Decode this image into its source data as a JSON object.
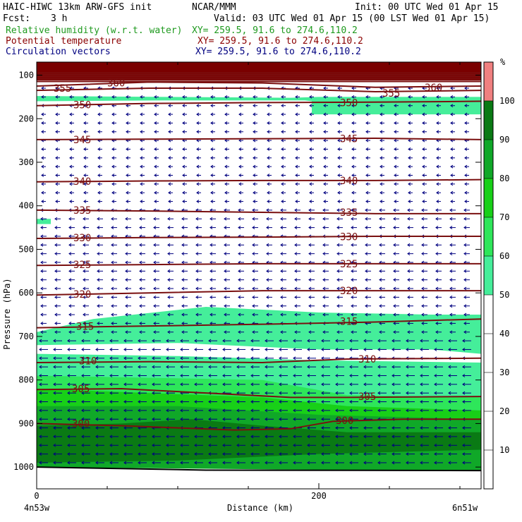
{
  "header": {
    "title": "HAIC-HIWC 13km ARW-GFS init",
    "org": "NCAR/MMM",
    "init": "Init: 00 UTC Wed 01 Apr 15",
    "fcst_label": "Fcst:",
    "fcst_value": "3 h",
    "valid": "Valid: 03 UTC Wed 01 Apr 15 (00 LST Wed 01 Apr 15)",
    "fields": [
      {
        "name": "Relative humidity (w.r.t. water)",
        "xy": "XY= 259.5, 91.6 to 274.6,110.2",
        "color": "#1f9a1f"
      },
      {
        "name": "Potential temperature",
        "xy": "XY= 259.5, 91.6 to 274.6,110.2",
        "color": "#8b0000"
      },
      {
        "name": "Circulation vectors",
        "xy": "XY= 259.5, 91.6 to 274.6,110.2",
        "color": "#000080"
      }
    ]
  },
  "chart_data": {
    "type": "cross-section",
    "xlabel": "Distance (km)",
    "ylabel": "Pressure (hPa)",
    "xlim": [
      0,
      315
    ],
    "ylim": [
      1050,
      70
    ],
    "x_ticks": [
      0,
      200
    ],
    "x_minor_ticks": [
      50,
      100,
      150,
      250,
      300
    ],
    "y_ticks": [
      100,
      200,
      300,
      400,
      500,
      600,
      700,
      800,
      900,
      1000
    ],
    "x_end_labels": {
      "left": "4n53w",
      "right": "6n51w"
    },
    "colors": {
      "rh_50_60": "#45ee9a",
      "rh_60_70": "#2ee65a",
      "rh_70_80": "#18d018",
      "rh_80_90": "#10a828",
      "rh_90_100": "#0a7a14",
      "rh_100_plus": "#f08080",
      "stratosphere_fill": "#7a0000",
      "theta_line": "#7a1010",
      "vector": "#000080",
      "terrain": "#000000"
    },
    "colorbar": {
      "unit": "%",
      "levels": [
        10,
        20,
        30,
        40,
        50,
        60,
        70,
        80,
        90,
        100
      ],
      "fill_colors": [
        "#ffffff",
        "#ffffff",
        "#ffffff",
        "#ffffff",
        "#ffffff",
        "#45ee9a",
        "#2ee65a",
        "#18d018",
        "#10a828",
        "#0a7a14",
        "#f08080"
      ]
    },
    "theta_contours": [
      {
        "value": 300,
        "label": "300",
        "p": [
          [
            0,
            900
          ],
          [
            60,
            905
          ],
          [
            140,
            915
          ],
          [
            180,
            912
          ],
          [
            210,
            895
          ],
          [
            260,
            890
          ],
          [
            315,
            890
          ]
        ],
        "label_at": [
          [
            25,
            900
          ],
          [
            212,
            893
          ]
        ]
      },
      {
        "value": 305,
        "label": "305",
        "p": [
          [
            0,
            822
          ],
          [
            60,
            820
          ],
          [
            120,
            830
          ],
          [
            180,
            840
          ],
          [
            220,
            840
          ],
          [
            315,
            838
          ]
        ],
        "label_at": [
          [
            25,
            820
          ],
          [
            228,
            838
          ]
        ]
      },
      {
        "value": 310,
        "label": "310",
        "p": [
          [
            0,
            760
          ],
          [
            80,
            758
          ],
          [
            160,
            760
          ],
          [
            220,
            752
          ],
          [
            315,
            750
          ]
        ],
        "label_at": [
          [
            30,
            756
          ],
          [
            228,
            752
          ]
        ]
      },
      {
        "value": 315,
        "label": "315",
        "p": [
          [
            0,
            680
          ],
          [
            80,
            676
          ],
          [
            160,
            672
          ],
          [
            240,
            667
          ],
          [
            315,
            660
          ]
        ],
        "label_at": [
          [
            28,
            677
          ],
          [
            215,
            665
          ]
        ]
      },
      {
        "value": 320,
        "label": "320",
        "p": [
          [
            0,
            605
          ],
          [
            80,
            600
          ],
          [
            160,
            595
          ],
          [
            240,
            595
          ],
          [
            315,
            595
          ]
        ],
        "label_at": [
          [
            26,
            603
          ],
          [
            215,
            595
          ]
        ]
      },
      {
        "value": 325,
        "label": "325",
        "p": [
          [
            0,
            537
          ],
          [
            80,
            535
          ],
          [
            160,
            533
          ],
          [
            240,
            533
          ],
          [
            315,
            533
          ]
        ],
        "label_at": [
          [
            26,
            535
          ],
          [
            215,
            533
          ]
        ]
      },
      {
        "value": 330,
        "label": "330",
        "p": [
          [
            0,
            475
          ],
          [
            80,
            473
          ],
          [
            160,
            472
          ],
          [
            240,
            470
          ],
          [
            315,
            470
          ]
        ],
        "label_at": [
          [
            26,
            473
          ],
          [
            215,
            471
          ]
        ]
      },
      {
        "value": 335,
        "label": "335",
        "p": [
          [
            0,
            410
          ],
          [
            80,
            412
          ],
          [
            160,
            415
          ],
          [
            240,
            418
          ],
          [
            315,
            418
          ]
        ],
        "label_at": [
          [
            26,
            410
          ],
          [
            215,
            415
          ]
        ]
      },
      {
        "value": 340,
        "label": "340",
        "p": [
          [
            0,
            345
          ],
          [
            80,
            343
          ],
          [
            160,
            342
          ],
          [
            240,
            342
          ],
          [
            315,
            340
          ]
        ],
        "label_at": [
          [
            26,
            344
          ],
          [
            215,
            342
          ]
        ]
      },
      {
        "value": 345,
        "label": "345",
        "p": [
          [
            0,
            248
          ],
          [
            80,
            247
          ],
          [
            160,
            246
          ],
          [
            240,
            245
          ],
          [
            315,
            248
          ]
        ],
        "label_at": [
          [
            26,
            248
          ],
          [
            215,
            246
          ]
        ]
      },
      {
        "value": 350,
        "label": "350",
        "p": [
          [
            0,
            170
          ],
          [
            80,
            165
          ],
          [
            160,
            163
          ],
          [
            240,
            162
          ],
          [
            315,
            160
          ]
        ],
        "label_at": [
          [
            26,
            168
          ],
          [
            215,
            163
          ]
        ]
      },
      {
        "value": 355,
        "label": "355",
        "p": [
          [
            0,
            135
          ],
          [
            80,
            130
          ],
          [
            160,
            130
          ],
          [
            240,
            138
          ],
          [
            315,
            135
          ]
        ],
        "label_at": [
          [
            12,
            130
          ],
          [
            245,
            141
          ]
        ]
      },
      {
        "value": 360,
        "label": "360",
        "p": [
          [
            0,
            125
          ],
          [
            80,
            116
          ],
          [
            160,
            118
          ],
          [
            240,
            128
          ],
          [
            315,
            125
          ]
        ],
        "label_at": [
          [
            50,
            118
          ],
          [
            275,
            128
          ]
        ]
      }
    ],
    "rh_regions": [
      {
        "level": "50-60",
        "upper": [
          [
            0,
            148
          ],
          [
            90,
            150
          ],
          [
            180,
            152
          ],
          [
            200,
            150
          ],
          [
            315,
            150
          ]
        ],
        "lower": [
          [
            0,
            160
          ],
          [
            90,
            158
          ],
          [
            190,
            158
          ],
          [
            195,
            160
          ],
          [
            315,
            190
          ]
        ]
      },
      {
        "level": "50-60",
        "upper": [
          [
            195,
            160
          ],
          [
            315,
            160
          ]
        ],
        "lower": [
          [
            195,
            190
          ],
          [
            315,
            190
          ]
        ]
      },
      {
        "level": "50-60",
        "upper": [
          [
            0,
            690
          ],
          [
            40,
            660
          ],
          [
            120,
            632
          ],
          [
            200,
            645
          ],
          [
            280,
            650
          ],
          [
            315,
            650
          ]
        ],
        "lower": [
          [
            0,
            720
          ],
          [
            100,
            715
          ],
          [
            200,
            730
          ],
          [
            280,
            730
          ],
          [
            315,
            740
          ]
        ]
      },
      {
        "level": "50-60",
        "upper": [
          [
            0,
            740
          ],
          [
            100,
            745
          ],
          [
            200,
            755
          ],
          [
            315,
            760
          ]
        ],
        "lower": [
          [
            0,
            800
          ],
          [
            100,
            820
          ],
          [
            200,
            840
          ],
          [
            230,
            850
          ],
          [
            315,
            850
          ]
        ]
      },
      {
        "level": "60-70",
        "upper": [
          [
            0,
            790
          ],
          [
            80,
            795
          ],
          [
            160,
            800
          ],
          [
            220,
            835
          ],
          [
            315,
            840
          ]
        ],
        "lower": [
          [
            0,
            850
          ],
          [
            100,
            850
          ],
          [
            200,
            870
          ],
          [
            315,
            880
          ]
        ]
      },
      {
        "level": "70-80",
        "upper": [
          [
            0,
            820
          ],
          [
            80,
            830
          ],
          [
            160,
            840
          ],
          [
            220,
            860
          ],
          [
            315,
            870
          ]
        ],
        "lower": [
          [
            0,
            870
          ],
          [
            100,
            875
          ],
          [
            200,
            885
          ],
          [
            315,
            895
          ]
        ]
      },
      {
        "level": "80-90",
        "upper": [
          [
            0,
            860
          ],
          [
            100,
            860
          ],
          [
            200,
            880
          ],
          [
            315,
            890
          ]
        ],
        "lower": [
          [
            0,
            1000
          ],
          [
            315,
            1010
          ]
        ]
      },
      {
        "level": "90-100",
        "upper": [
          [
            0,
            905
          ],
          [
            60,
            900
          ],
          [
            110,
            890
          ],
          [
            160,
            905
          ],
          [
            220,
            920
          ],
          [
            315,
            920
          ]
        ],
        "lower": [
          [
            0,
            990
          ],
          [
            100,
            985
          ],
          [
            200,
            970
          ],
          [
            315,
            960
          ]
        ]
      },
      {
        "level": "50-60",
        "upper": [
          [
            0,
            430
          ],
          [
            10,
            430
          ]
        ],
        "lower": [
          [
            0,
            442
          ],
          [
            10,
            442
          ]
        ]
      }
    ],
    "stratosphere_top": 85,
    "terrain_p": 1005,
    "vectors": {
      "x_step_km": 10,
      "p_levels": [
        130,
        150,
        170,
        190,
        210,
        230,
        250,
        270,
        290,
        310,
        330,
        350,
        370,
        390,
        410,
        430,
        450,
        470,
        490,
        510,
        530,
        550,
        570,
        590,
        610,
        630,
        650,
        670,
        690,
        710,
        730,
        750,
        770,
        790,
        810,
        830,
        850,
        870,
        890,
        910,
        930,
        950,
        970,
        990
      ],
      "dir": "west"
    }
  }
}
